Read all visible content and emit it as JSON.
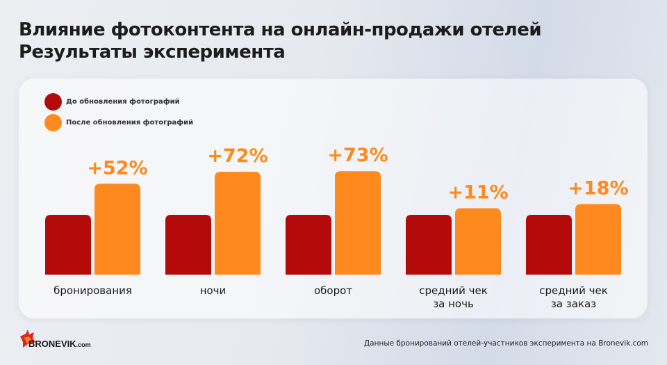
{
  "title": {
    "line1": "Влияние фотоконтента на онлайн-продажи отелей",
    "line2": "Результаты эксперимента"
  },
  "footer": {
    "source": "Данные бронирований отелей-участников эксперимента на Bronevik.com",
    "logo_text": "BRONEVIK.com"
  },
  "colors": {
    "before": "#b30a0a",
    "after": "#fe8a1f"
  },
  "chart_data": {
    "type": "bar",
    "categories": [
      [
        "бронирования"
      ],
      [
        "ночи"
      ],
      [
        "оборот"
      ],
      [
        "средний чек",
        "за ночь"
      ],
      [
        "средний чек",
        "за заказ"
      ]
    ],
    "series": [
      {
        "name": "До обновления фотографий",
        "values": [
          100,
          100,
          100,
          100,
          100
        ]
      },
      {
        "name": "После обновления фотографий",
        "values": [
          152,
          172,
          173,
          111,
          118
        ]
      }
    ],
    "data_labels": [
      "+52%",
      "+72%",
      "+73%",
      "+11%",
      "+18%"
    ],
    "legend": "top-left",
    "grid": false
  }
}
